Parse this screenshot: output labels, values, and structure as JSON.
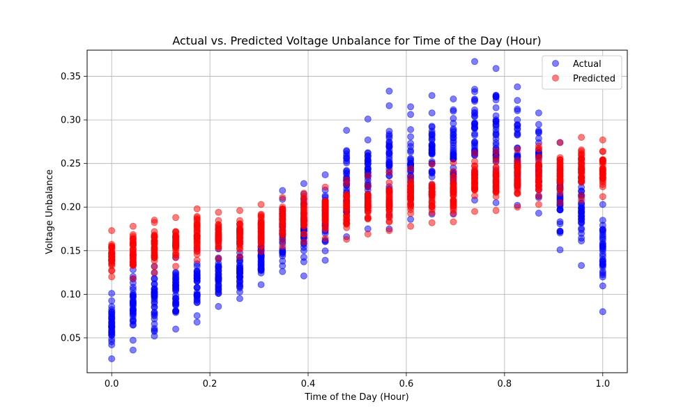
{
  "chart_data": {
    "type": "scatter",
    "title": "Actual vs. Predicted Voltage Unbalance for Time of the Day (Hour)",
    "xlabel": "Time of the Day (Hour)",
    "ylabel": "Voltage Unbalance",
    "xlim": [
      -0.05,
      1.05
    ],
    "ylim": [
      0.01,
      0.38
    ],
    "xticks": [
      0.0,
      0.2,
      0.4,
      0.6,
      0.8,
      1.0
    ],
    "xtick_labels": [
      "0.0",
      "0.2",
      "0.4",
      "0.6",
      "0.8",
      "1.0"
    ],
    "yticks": [
      0.05,
      0.1,
      0.15,
      0.2,
      0.25,
      0.3,
      0.35
    ],
    "ytick_labels": [
      "0.05",
      "0.10",
      "0.15",
      "0.20",
      "0.25",
      "0.30",
      "0.35"
    ],
    "grid": true,
    "legend_position": "top-right",
    "x": [
      0.0,
      0.0435,
      0.087,
      0.1304,
      0.1739,
      0.2174,
      0.2609,
      0.3043,
      0.3478,
      0.3913,
      0.4348,
      0.4783,
      0.5217,
      0.5652,
      0.6087,
      0.6522,
      0.6957,
      0.7391,
      0.7826,
      0.8261,
      0.8696,
      0.913,
      0.9565,
      1.0
    ],
    "series": [
      {
        "name": "Actual",
        "color": "#0000ff",
        "ranges": [
          [
            0.026,
            0.101
          ],
          [
            0.036,
            0.137
          ],
          [
            0.052,
            0.132
          ],
          [
            0.06,
            0.142
          ],
          [
            0.068,
            0.152
          ],
          [
            0.086,
            0.152
          ],
          [
            0.095,
            0.158
          ],
          [
            0.111,
            0.172
          ],
          [
            0.126,
            0.219
          ],
          [
            0.121,
            0.227
          ],
          [
            0.139,
            0.237
          ],
          [
            0.166,
            0.288
          ],
          [
            0.175,
            0.301
          ],
          [
            0.175,
            0.333
          ],
          [
            0.186,
            0.315
          ],
          [
            0.192,
            0.328
          ],
          [
            0.192,
            0.324
          ],
          [
            0.208,
            0.367
          ],
          [
            0.205,
            0.359
          ],
          [
            0.202,
            0.338
          ],
          [
            0.193,
            0.308
          ],
          [
            0.151,
            0.274
          ],
          [
            0.133,
            0.255
          ],
          [
            0.08,
            0.203
          ]
        ]
      },
      {
        "name": "Predicted",
        "color": "#ff0000",
        "ranges": [
          [
            0.12,
            0.173
          ],
          [
            0.118,
            0.178
          ],
          [
            0.125,
            0.185
          ],
          [
            0.132,
            0.188
          ],
          [
            0.139,
            0.198
          ],
          [
            0.141,
            0.194
          ],
          [
            0.143,
            0.196
          ],
          [
            0.149,
            0.203
          ],
          [
            0.155,
            0.211
          ],
          [
            0.16,
            0.216
          ],
          [
            0.164,
            0.223
          ],
          [
            0.163,
            0.231
          ],
          [
            0.169,
            0.236
          ],
          [
            0.173,
            0.24
          ],
          [
            0.178,
            0.244
          ],
          [
            0.182,
            0.249
          ],
          [
            0.183,
            0.251
          ],
          [
            0.195,
            0.262
          ],
          [
            0.196,
            0.264
          ],
          [
            0.2,
            0.266
          ],
          [
            0.203,
            0.27
          ],
          [
            0.205,
            0.274
          ],
          [
            0.208,
            0.28
          ],
          [
            0.212,
            0.277
          ]
        ]
      }
    ]
  }
}
